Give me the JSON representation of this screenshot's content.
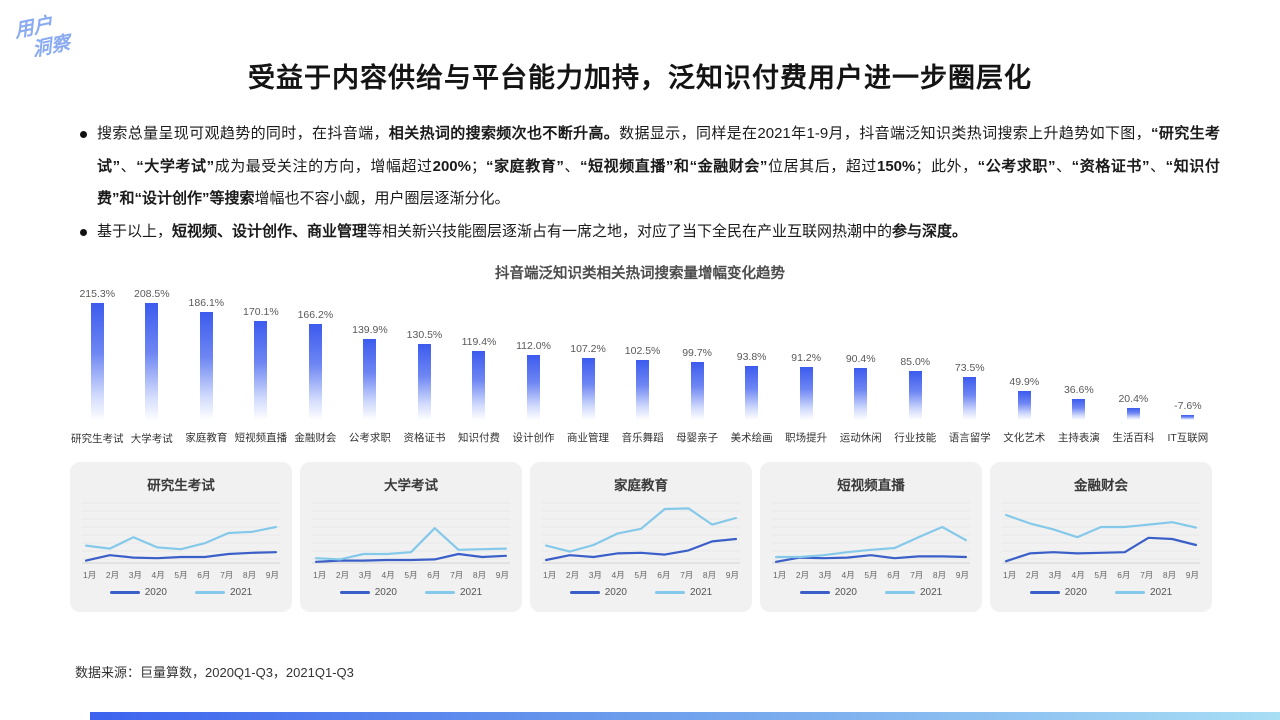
{
  "logo": {
    "line1": "用户",
    "line2": "洞察"
  },
  "title": "受益于内容供给与平台能力加持，泛知识付费用户进一步圈层化",
  "bullets": [
    {
      "segments": [
        {
          "t": "搜索总量呈现可观趋势的同时，在抖音端，",
          "b": false
        },
        {
          "t": "相关热词的搜索频次也不断升高。",
          "b": true
        },
        {
          "t": "数据显示，同样是在2021年1-9月，抖音端泛知识类热词搜索上升趋势如下图，",
          "b": false
        },
        {
          "t": "“研究生考试”",
          "b": true
        },
        {
          "t": "、",
          "b": false
        },
        {
          "t": "“大学考试”",
          "b": true
        },
        {
          "t": "成为最受关注的方向，增幅超过",
          "b": false
        },
        {
          "t": "200%",
          "b": true
        },
        {
          "t": "；",
          "b": false
        },
        {
          "t": "“家庭教育”",
          "b": true
        },
        {
          "t": "、",
          "b": false
        },
        {
          "t": "“短视频直播”和“金融财会”",
          "b": true
        },
        {
          "t": "位居其后，超过",
          "b": false
        },
        {
          "t": "150%",
          "b": true
        },
        {
          "t": "；此外，",
          "b": false
        },
        {
          "t": "“公考求职”",
          "b": true
        },
        {
          "t": "、",
          "b": false
        },
        {
          "t": "“资格证书”",
          "b": true
        },
        {
          "t": "、",
          "b": false
        },
        {
          "t": "“知识付费”和“设计创作”等搜索",
          "b": true
        },
        {
          "t": "增幅也不容小觑，用户圈层逐渐分化。",
          "b": false
        }
      ]
    },
    {
      "segments": [
        {
          "t": "基于以上，",
          "b": false
        },
        {
          "t": "短视频、设计创作、商业管理",
          "b": true
        },
        {
          "t": "等相关新兴技能圈层逐渐占有一席之地，对应了当下全民在产业互联网热潮中的",
          "b": false
        },
        {
          "t": "参与深度。",
          "b": true
        }
      ]
    }
  ],
  "chart_data": [
    {
      "type": "bar",
      "title": "抖音端泛知识类相关热词搜索量增幅变化趋势",
      "categories": [
        "研究生考试",
        "大学考试",
        "家庭教育",
        "短视频直播",
        "金融财会",
        "公考求职",
        "资格证书",
        "知识付费",
        "设计创作",
        "商业管理",
        "音乐舞蹈",
        "母婴亲子",
        "美术绘画",
        "职场提升",
        "运动休闲",
        "行业技能",
        "语言留学",
        "文化艺术",
        "主持表演",
        "生活百科",
        "IT互联网"
      ],
      "values": [
        215.3,
        208.5,
        186.1,
        170.1,
        166.2,
        139.9,
        130.5,
        119.4,
        112.0,
        107.2,
        102.5,
        99.7,
        93.8,
        91.2,
        90.4,
        85.0,
        73.5,
        49.9,
        36.6,
        20.4,
        -7.6
      ],
      "unit": "%",
      "ylim": [
        -10,
        230
      ],
      "grid": false,
      "bar_color_top": "#3c5bee"
    },
    {
      "type": "line",
      "title": "研究生考试",
      "x": [
        "1月",
        "2月",
        "3月",
        "4月",
        "5月",
        "6月",
        "7月",
        "8月",
        "9月"
      ],
      "ylim": [
        0,
        100
      ],
      "legend_position": "bottom",
      "series": [
        {
          "name": "2020",
          "color": "#3a5fc8",
          "values": [
            4,
            13,
            9,
            8,
            10,
            10,
            15,
            17,
            18
          ]
        },
        {
          "name": "2021",
          "color": "#85c9ea",
          "values": [
            29,
            24,
            43,
            26,
            23,
            33,
            50,
            52,
            60
          ]
        }
      ]
    },
    {
      "type": "line",
      "title": "大学考试",
      "x": [
        "1月",
        "2月",
        "3月",
        "4月",
        "5月",
        "6月",
        "7月",
        "8月",
        "9月"
      ],
      "ylim": [
        0,
        100
      ],
      "legend_position": "bottom",
      "series": [
        {
          "name": "2020",
          "color": "#3a5fc8",
          "values": [
            2,
            4,
            4,
            5,
            5,
            6,
            15,
            10,
            12
          ]
        },
        {
          "name": "2021",
          "color": "#85c9ea",
          "values": [
            8,
            6,
            15,
            15,
            18,
            58,
            22,
            23,
            24
          ]
        }
      ]
    },
    {
      "type": "line",
      "title": "家庭教育",
      "x": [
        "1月",
        "2月",
        "3月",
        "4月",
        "5月",
        "6月",
        "7月",
        "8月",
        "9月"
      ],
      "ylim": [
        0,
        100
      ],
      "legend_position": "bottom",
      "series": [
        {
          "name": "2020",
          "color": "#3a5fc8",
          "values": [
            5,
            13,
            10,
            16,
            17,
            14,
            21,
            36,
            40
          ]
        },
        {
          "name": "2021",
          "color": "#85c9ea",
          "values": [
            29,
            19,
            30,
            49,
            57,
            90,
            91,
            64,
            75
          ]
        }
      ]
    },
    {
      "type": "line",
      "title": "短视频直播",
      "x": [
        "1月",
        "2月",
        "3月",
        "4月",
        "5月",
        "6月",
        "7月",
        "8月",
        "9月"
      ],
      "ylim": [
        0,
        100
      ],
      "legend_position": "bottom",
      "series": [
        {
          "name": "2020",
          "color": "#3a5fc8",
          "values": [
            2,
            9,
            8,
            9,
            13,
            8,
            11,
            11,
            10
          ]
        },
        {
          "name": "2021",
          "color": "#85c9ea",
          "values": [
            10,
            10,
            13,
            18,
            22,
            25,
            43,
            60,
            38
          ]
        }
      ]
    },
    {
      "type": "line",
      "title": "金融财会",
      "x": [
        "1月",
        "2月",
        "3月",
        "4月",
        "5月",
        "6月",
        "7月",
        "8月",
        "9月"
      ],
      "ylim": [
        0,
        100
      ],
      "legend_position": "bottom",
      "series": [
        {
          "name": "2020",
          "color": "#3a5fc8",
          "values": [
            3,
            16,
            18,
            16,
            17,
            18,
            42,
            40,
            30
          ]
        },
        {
          "name": "2021",
          "color": "#85c9ea",
          "values": [
            80,
            66,
            56,
            43,
            60,
            60,
            64,
            68,
            59
          ]
        }
      ]
    }
  ],
  "source": "数据来源：巨量算数，2020Q1-Q3，2021Q1-Q3",
  "colors": {
    "accent_blue": "#3c5bee",
    "line_2020": "#3a5fc8",
    "line_2021": "#85c9ea",
    "logo_blue": "#8aabf2",
    "card_bg": "#f1f1f1"
  }
}
